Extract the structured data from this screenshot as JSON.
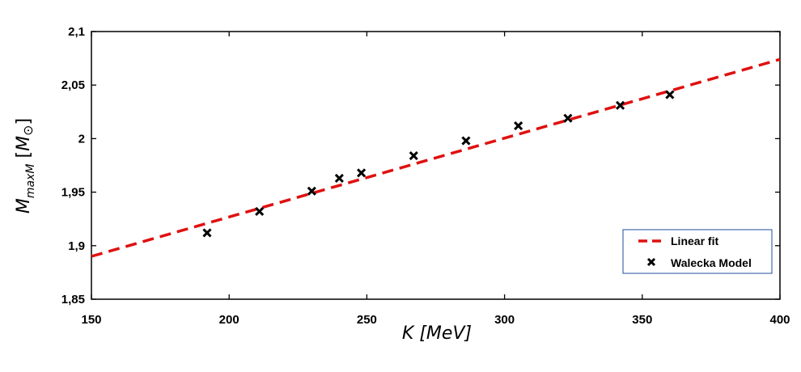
{
  "chart_data": {
    "type": "scatter",
    "xlabel": "K [MeV]",
    "ylabel": "M_maxM [M_⊙]",
    "xlim": [
      150,
      400
    ],
    "ylim": [
      1.85,
      2.1
    ],
    "x_ticks": [
      "150",
      "200",
      "250",
      "300",
      "350",
      "400"
    ],
    "y_ticks": [
      "1,85",
      "1,9",
      "1,95",
      "2",
      "2,05",
      "2,1"
    ],
    "grid": false,
    "legend_position": "bottom-right",
    "series": [
      {
        "name": "Walecka Model",
        "type": "scatter",
        "marker": "x",
        "color": "#000000",
        "points": [
          [
            192,
            1.912
          ],
          [
            211,
            1.932
          ],
          [
            230,
            1.951
          ],
          [
            240,
            1.963
          ],
          [
            248,
            1.968
          ],
          [
            267,
            1.984
          ],
          [
            286,
            1.998
          ],
          [
            305,
            2.012
          ],
          [
            323,
            2.019
          ],
          [
            342,
            2.031
          ],
          [
            360,
            2.041
          ]
        ]
      },
      {
        "name": "Linear fit",
        "type": "line",
        "style": "dashed",
        "color": "#e01010",
        "points": [
          [
            150,
            1.89
          ],
          [
            400,
            2.074
          ]
        ]
      }
    ]
  }
}
